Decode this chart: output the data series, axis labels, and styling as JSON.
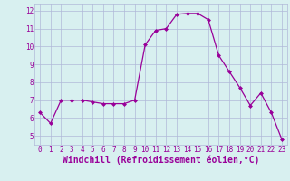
{
  "x": [
    0,
    1,
    2,
    3,
    4,
    5,
    6,
    7,
    8,
    9,
    10,
    11,
    12,
    13,
    14,
    15,
    16,
    17,
    18,
    19,
    20,
    21,
    22,
    23
  ],
  "y": [
    6.3,
    5.7,
    7.0,
    7.0,
    7.0,
    6.9,
    6.8,
    6.8,
    6.8,
    7.0,
    10.1,
    10.9,
    11.0,
    11.8,
    11.85,
    11.85,
    11.5,
    9.5,
    8.6,
    7.7,
    6.7,
    7.4,
    6.3,
    4.8
  ],
  "line_color": "#990099",
  "marker": "D",
  "markersize": 2.0,
  "linewidth": 0.9,
  "bg_color": "#d8f0f0",
  "grid_color": "#b0b8d8",
  "xlabel": "Windchill (Refroidissement éolien,°C)",
  "xlabel_color": "#990099",
  "ylabel_ticks": [
    5,
    6,
    7,
    8,
    9,
    10,
    11,
    12
  ],
  "xlim": [
    -0.5,
    23.5
  ],
  "ylim": [
    4.5,
    12.4
  ],
  "tick_fontsize": 5.5,
  "xlabel_fontsize": 7.0
}
